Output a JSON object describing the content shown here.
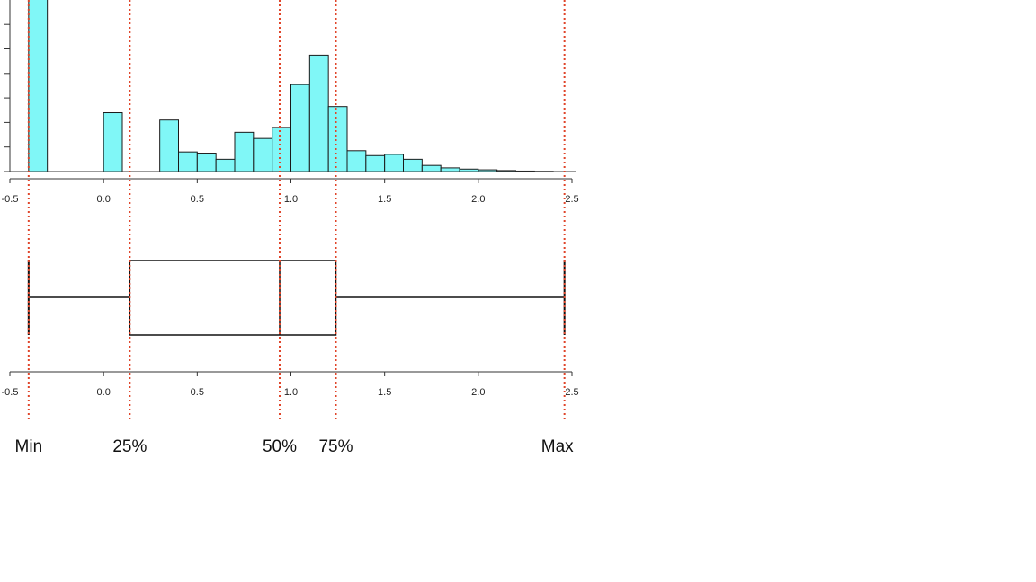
{
  "chart_data": [
    {
      "type": "bar",
      "subtype": "histogram",
      "bin_width": 0.1,
      "x_ticks": [
        "-0.5",
        "0.0",
        "0.5",
        "1.0",
        "1.5",
        "2.0",
        "2.5"
      ],
      "xlim": [
        -0.5,
        2.5
      ],
      "bins": [
        {
          "x0": -0.4,
          "x1": -0.3,
          "value": 7.2
        },
        {
          "x0": 0.0,
          "x1": 0.1,
          "value": 2.4
        },
        {
          "x0": 0.3,
          "x1": 0.4,
          "value": 2.1
        },
        {
          "x0": 0.4,
          "x1": 0.5,
          "value": 0.8
        },
        {
          "x0": 0.5,
          "x1": 0.6,
          "value": 0.75
        },
        {
          "x0": 0.6,
          "x1": 0.7,
          "value": 0.5
        },
        {
          "x0": 0.7,
          "x1": 0.8,
          "value": 1.6
        },
        {
          "x0": 0.8,
          "x1": 0.9,
          "value": 1.35
        },
        {
          "x0": 0.9,
          "x1": 1.0,
          "value": 1.8
        },
        {
          "x0": 1.0,
          "x1": 1.1,
          "value": 3.55
        },
        {
          "x0": 1.1,
          "x1": 1.2,
          "value": 4.75
        },
        {
          "x0": 1.2,
          "x1": 1.3,
          "value": 2.65
        },
        {
          "x0": 1.3,
          "x1": 1.4,
          "value": 0.85
        },
        {
          "x0": 1.4,
          "x1": 1.5,
          "value": 0.65
        },
        {
          "x0": 1.5,
          "x1": 1.6,
          "value": 0.7
        },
        {
          "x0": 1.6,
          "x1": 1.7,
          "value": 0.5
        },
        {
          "x0": 1.7,
          "x1": 1.8,
          "value": 0.25
        },
        {
          "x0": 1.8,
          "x1": 1.9,
          "value": 0.15
        },
        {
          "x0": 1.9,
          "x1": 2.0,
          "value": 0.1
        },
        {
          "x0": 2.0,
          "x1": 2.1,
          "value": 0.07
        },
        {
          "x0": 2.1,
          "x1": 2.2,
          "value": 0.04
        },
        {
          "x0": 2.2,
          "x1": 2.3,
          "value": 0.02
        },
        {
          "x0": 2.3,
          "x1": 2.4,
          "value": 0.01
        }
      ],
      "ylim": [
        0,
        7
      ],
      "y_tick_count": 7,
      "bar_color": "#80f7f7",
      "bar_edge_color": "#1a1a1a",
      "grid": false
    },
    {
      "type": "box",
      "x_ticks": [
        "-0.5",
        "0.0",
        "0.5",
        "1.0",
        "1.5",
        "2.0",
        "2.5"
      ],
      "xlim": [
        -0.5,
        2.5
      ],
      "min": -0.4,
      "q1": 0.14,
      "median": 0.94,
      "q3": 1.24,
      "max": 2.46,
      "quantile_labels": [
        {
          "label": "Min",
          "value": -0.4
        },
        {
          "label": "25%",
          "value": 0.14
        },
        {
          "label": "50%",
          "value": 0.94
        },
        {
          "label": "75%",
          "value": 1.24
        },
        {
          "label": "Max",
          "value": 2.46
        }
      ],
      "guide_line_color": "#e0452a",
      "box_color": "#111111"
    }
  ]
}
